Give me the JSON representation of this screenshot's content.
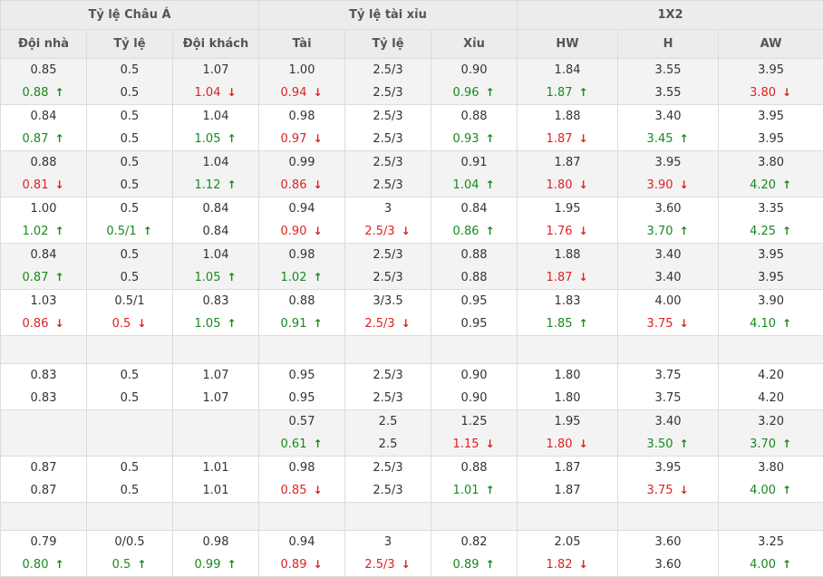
{
  "groups": [
    "Tỷ lệ Châu Á",
    "Tỷ lệ tài xỉu",
    "1X2"
  ],
  "columns": [
    "Đội nhà",
    "Tỷ lệ",
    "Đội khách",
    "Tài",
    "Tỷ lệ",
    "Xỉu",
    "HW",
    "H",
    "AW"
  ],
  "colors": {
    "up": "#178a1c",
    "down": "#e02020",
    "header_bg": "#ececec",
    "shade_bg": "#f3f3f3"
  },
  "icons": {
    "up": "arrow-up-icon",
    "down": "arrow-down-icon"
  },
  "rows": [
    {
      "shade": true,
      "cells": [
        [
          "0.85",
          "0.88",
          "up"
        ],
        [
          "0.5",
          "0.5",
          ""
        ],
        [
          "1.07",
          "1.04",
          "down"
        ],
        [
          "1.00",
          "0.94",
          "down"
        ],
        [
          "2.5/3",
          "2.5/3",
          ""
        ],
        [
          "0.90",
          "0.96",
          "up"
        ],
        [
          "1.84",
          "1.87",
          "up"
        ],
        [
          "3.55",
          "3.55",
          ""
        ],
        [
          "3.95",
          "3.80",
          "down"
        ]
      ]
    },
    {
      "shade": false,
      "cells": [
        [
          "0.84",
          "0.87",
          "up"
        ],
        [
          "0.5",
          "0.5",
          ""
        ],
        [
          "1.04",
          "1.05",
          "up"
        ],
        [
          "0.98",
          "0.97",
          "down"
        ],
        [
          "2.5/3",
          "2.5/3",
          ""
        ],
        [
          "0.88",
          "0.93",
          "up"
        ],
        [
          "1.88",
          "1.87",
          "down"
        ],
        [
          "3.40",
          "3.45",
          "up"
        ],
        [
          "3.95",
          "3.95",
          ""
        ]
      ]
    },
    {
      "shade": true,
      "cells": [
        [
          "0.88",
          "0.81",
          "down"
        ],
        [
          "0.5",
          "0.5",
          ""
        ],
        [
          "1.04",
          "1.12",
          "up"
        ],
        [
          "0.99",
          "0.86",
          "down"
        ],
        [
          "2.5/3",
          "2.5/3",
          ""
        ],
        [
          "0.91",
          "1.04",
          "up"
        ],
        [
          "1.87",
          "1.80",
          "down"
        ],
        [
          "3.95",
          "3.90",
          "down"
        ],
        [
          "3.80",
          "4.20",
          "up"
        ]
      ]
    },
    {
      "shade": false,
      "cells": [
        [
          "1.00",
          "1.02",
          "up"
        ],
        [
          "0.5",
          "0.5/1",
          "up"
        ],
        [
          "0.84",
          "0.84",
          ""
        ],
        [
          "0.94",
          "0.90",
          "down"
        ],
        [
          "3",
          "2.5/3",
          "down"
        ],
        [
          "0.84",
          "0.86",
          "up"
        ],
        [
          "1.95",
          "1.76",
          "down"
        ],
        [
          "3.60",
          "3.70",
          "up"
        ],
        [
          "3.35",
          "4.25",
          "up"
        ]
      ]
    },
    {
      "shade": true,
      "cells": [
        [
          "0.84",
          "0.87",
          "up"
        ],
        [
          "0.5",
          "0.5",
          ""
        ],
        [
          "1.04",
          "1.05",
          "up"
        ],
        [
          "0.98",
          "1.02",
          "up"
        ],
        [
          "2.5/3",
          "2.5/3",
          ""
        ],
        [
          "0.88",
          "0.88",
          ""
        ],
        [
          "1.88",
          "1.87",
          "down"
        ],
        [
          "3.40",
          "3.40",
          ""
        ],
        [
          "3.95",
          "3.95",
          ""
        ]
      ]
    },
    {
      "shade": false,
      "cells": [
        [
          "1.03",
          "0.86",
          "down"
        ],
        [
          "0.5/1",
          "0.5",
          "down"
        ],
        [
          "0.83",
          "1.05",
          "up"
        ],
        [
          "0.88",
          "0.91",
          "up"
        ],
        [
          "3/3.5",
          "2.5/3",
          "down"
        ],
        [
          "0.95",
          "0.95",
          ""
        ],
        [
          "1.83",
          "1.85",
          "up"
        ],
        [
          "4.00",
          "3.75",
          "down"
        ],
        [
          "3.90",
          "4.10",
          "up"
        ]
      ]
    },
    {
      "blank": true,
      "shade": true
    },
    {
      "shade": false,
      "cells": [
        [
          "0.83",
          "0.83",
          ""
        ],
        [
          "0.5",
          "0.5",
          ""
        ],
        [
          "1.07",
          "1.07",
          ""
        ],
        [
          "0.95",
          "0.95",
          ""
        ],
        [
          "2.5/3",
          "2.5/3",
          ""
        ],
        [
          "0.90",
          "0.90",
          ""
        ],
        [
          "1.80",
          "1.80",
          ""
        ],
        [
          "3.75",
          "3.75",
          ""
        ],
        [
          "4.20",
          "4.20",
          ""
        ]
      ]
    },
    {
      "shade": true,
      "cells": [
        [
          "",
          "",
          ""
        ],
        [
          "",
          "",
          ""
        ],
        [
          "",
          "",
          ""
        ],
        [
          "0.57",
          "0.61",
          "up"
        ],
        [
          "2.5",
          "2.5",
          ""
        ],
        [
          "1.25",
          "1.15",
          "down"
        ],
        [
          "1.95",
          "1.80",
          "down"
        ],
        [
          "3.40",
          "3.50",
          "up"
        ],
        [
          "3.20",
          "3.70",
          "up"
        ]
      ]
    },
    {
      "shade": false,
      "cells": [
        [
          "0.87",
          "0.87",
          ""
        ],
        [
          "0.5",
          "0.5",
          ""
        ],
        [
          "1.01",
          "1.01",
          ""
        ],
        [
          "0.98",
          "0.85",
          "down"
        ],
        [
          "2.5/3",
          "2.5/3",
          ""
        ],
        [
          "0.88",
          "1.01",
          "up"
        ],
        [
          "1.87",
          "1.87",
          ""
        ],
        [
          "3.95",
          "3.75",
          "down"
        ],
        [
          "3.80",
          "4.00",
          "up"
        ]
      ]
    },
    {
      "blank": true,
      "shade": true
    },
    {
      "shade": false,
      "cells": [
        [
          "0.79",
          "0.80",
          "up"
        ],
        [
          "0/0.5",
          "0.5",
          "up"
        ],
        [
          "0.98",
          "0.99",
          "up"
        ],
        [
          "0.94",
          "0.89",
          "down"
        ],
        [
          "3",
          "2.5/3",
          "down"
        ],
        [
          "0.82",
          "0.89",
          "up"
        ],
        [
          "2.05",
          "1.82",
          "down"
        ],
        [
          "3.60",
          "3.60",
          ""
        ],
        [
          "3.25",
          "4.00",
          "up"
        ]
      ]
    }
  ]
}
